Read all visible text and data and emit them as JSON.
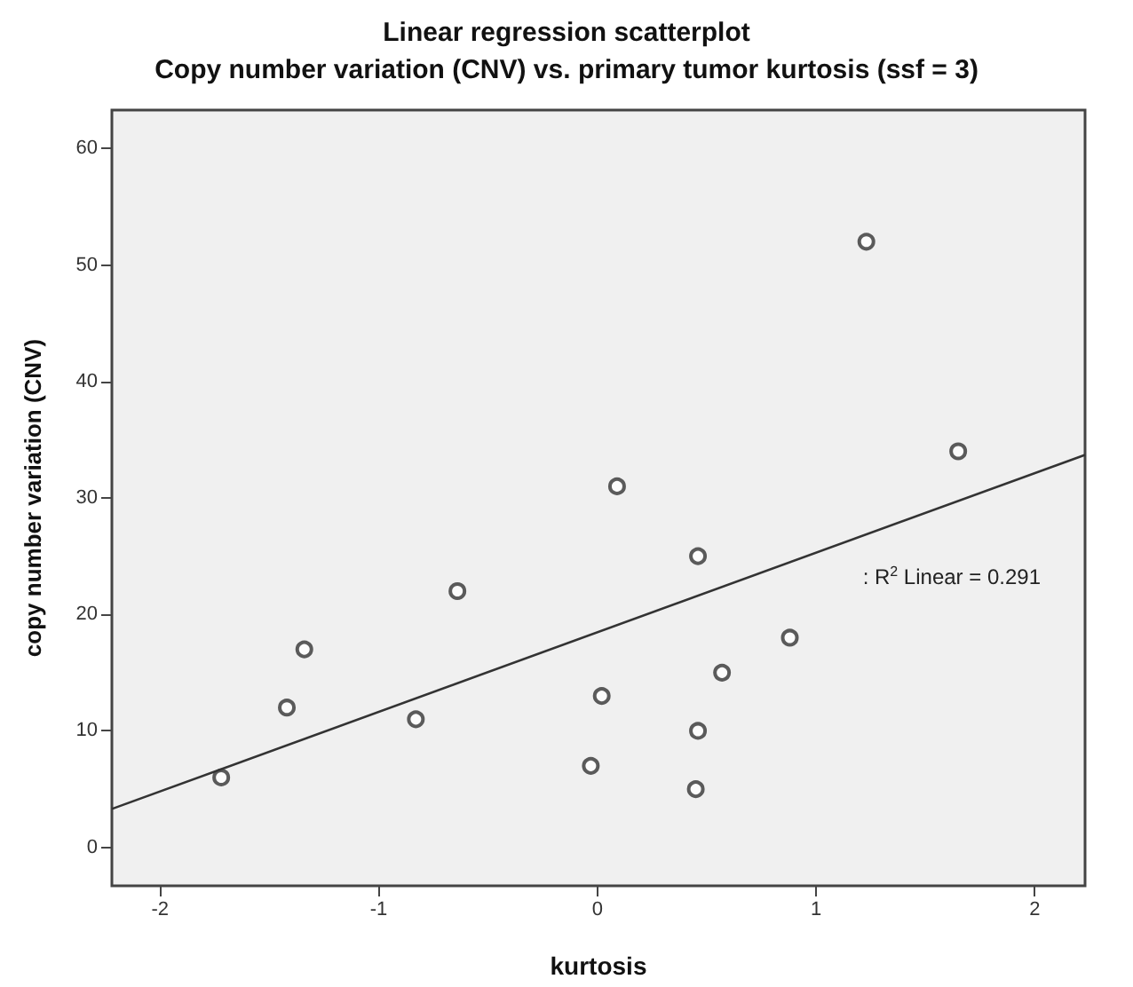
{
  "chart_data": {
    "type": "scatter",
    "title": "Linear regression scatterplot",
    "subtitle": "Copy number variation (CNV) vs. primary tumor kurtosis (ssf = 3)",
    "xlabel": "kurtosis",
    "ylabel": "copy number variation (CNV)",
    "x": [
      -1.72,
      -1.42,
      -1.34,
      -0.83,
      -0.64,
      -0.03,
      0.02,
      0.09,
      0.45,
      0.46,
      0.46,
      0.57,
      0.88,
      1.23,
      1.65
    ],
    "series": [
      {
        "type": "scatter",
        "color": "#333333",
        "marker": "circle",
        "values": [
          6,
          12,
          17,
          11,
          22,
          7,
          13,
          31,
          5,
          10,
          25,
          15,
          18,
          52,
          34
        ]
      },
      {
        "type": "line",
        "color": "#333333",
        "marker": "none",
        "line_style": "solid",
        "x": [
          -2.22,
          2.23
        ],
        "values": [
          3.3,
          33.7
        ]
      }
    ],
    "annotations": [
      ": R$^{2}$ Linear = 0.291"
    ],
    "xlim": [
      -2.22,
      2.23
    ],
    "xticks": [
      -2,
      -1,
      0,
      1,
      2
    ],
    "ylim": [
      -3.3,
      63.3
    ],
    "yticks": [
      0,
      10,
      20,
      30,
      40,
      50,
      60
    ]
  }
}
